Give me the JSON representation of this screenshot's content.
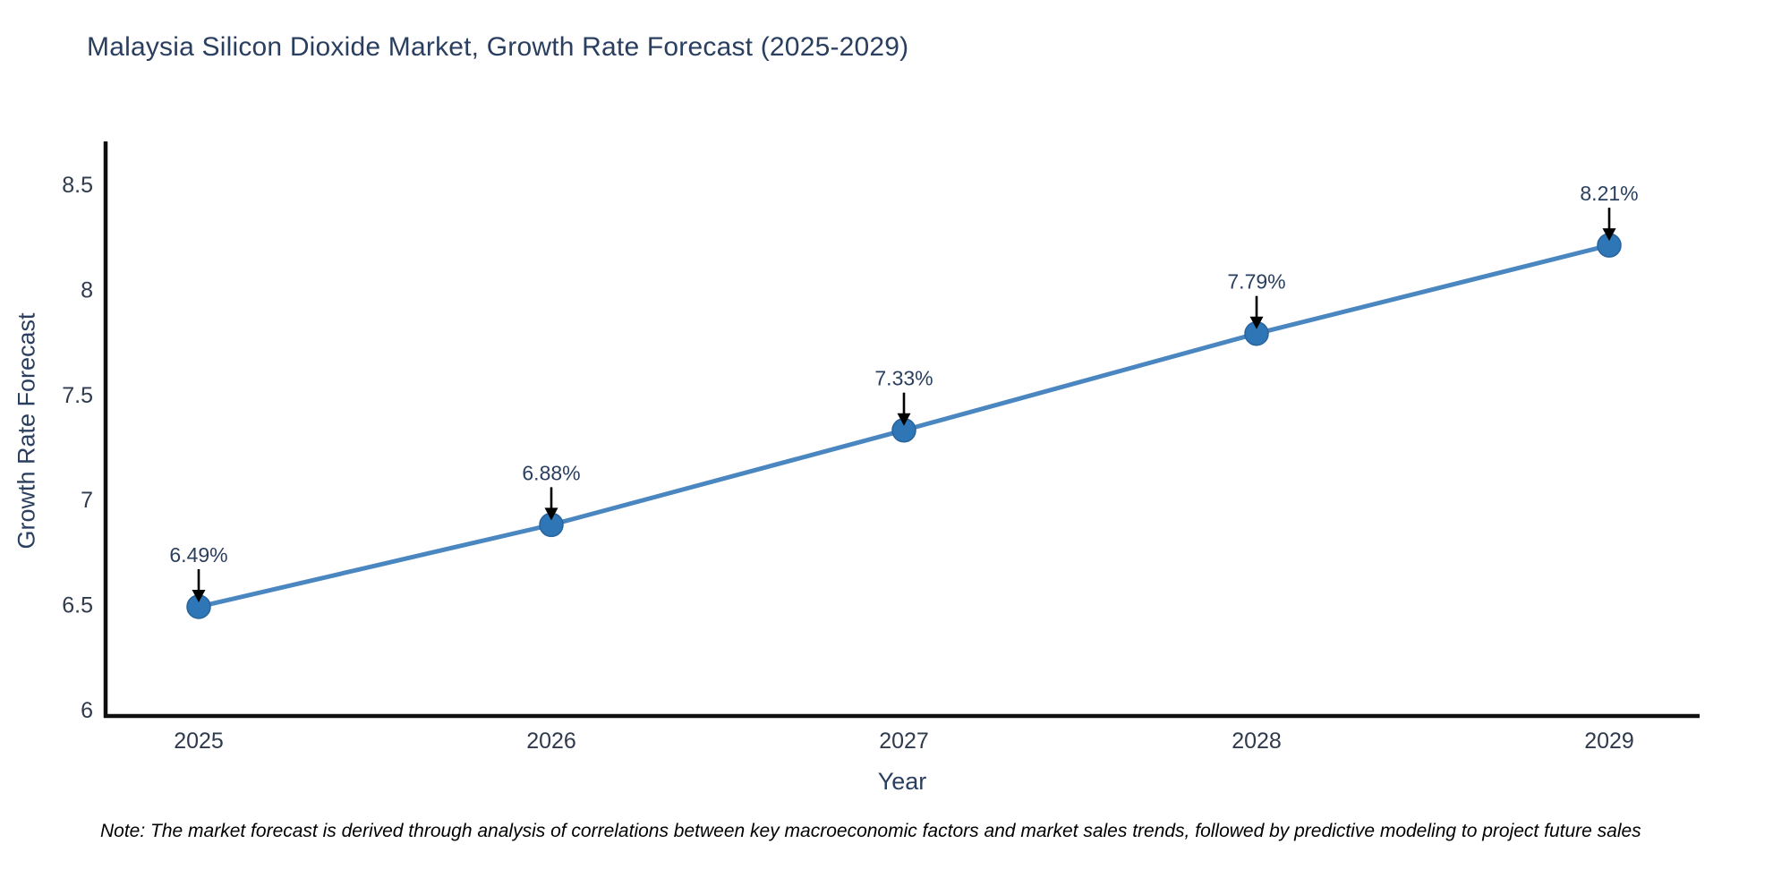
{
  "title": "Malaysia Silicon Dioxide Market, Growth Rate Forecast (2025-2029)",
  "note": "Note: The market forecast is derived through analysis of correlations between key macroeconomic factors and market sales trends, followed by predictive modeling to project future sales",
  "colors": {
    "background": "#ffffff",
    "title_text": "#2a3f5f",
    "axis_title_text": "#2a3f5f",
    "tick_text": "#2f3a4d",
    "annotation_text": "#2a3f5f",
    "arrow": "#000000",
    "spine": "#0f0f0f",
    "line": "#4a86c0",
    "marker_fill": "#2e76b6",
    "marker_edge": "#27639c",
    "note_text": "#000000"
  },
  "chart_data": {
    "type": "line",
    "title": "Malaysia Silicon Dioxide Market, Growth Rate Forecast (2025-2029)",
    "xlabel": "Year",
    "ylabel": "Growth Rate Forecast",
    "x": [
      2025,
      2026,
      2027,
      2028,
      2029
    ],
    "series": [
      {
        "name": "Growth Rate Forecast",
        "values": [
          6.49,
          6.88,
          7.33,
          7.79,
          8.21
        ],
        "point_labels": [
          "6.49%",
          "6.88%",
          "7.33%",
          "7.79%",
          "8.21%"
        ]
      }
    ],
    "xticks": [
      "2025",
      "2026",
      "2027",
      "2028",
      "2029"
    ],
    "yticks": [
      "6",
      "6.5",
      "7",
      "7.5",
      "8",
      "8.5"
    ],
    "ylim": [
      5.97,
      8.72
    ],
    "grid": false,
    "legend_position": "none",
    "marker": "circle",
    "annotation_style": "value label above each point with downward black arrow"
  }
}
